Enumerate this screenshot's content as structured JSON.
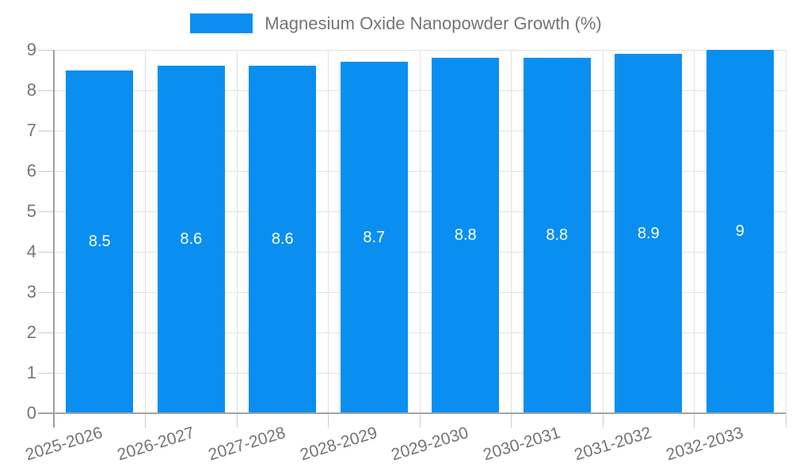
{
  "legend": {
    "label": "Magnesium Oxide Nanopowder Growth (%)"
  },
  "colors": {
    "bar": "#0a8ff0",
    "axis_text": "#757575",
    "bar_label_text": "#ffffff",
    "gridline": "#e2e2e2",
    "axis_line": "#9e9e9e",
    "background": "#ffffff"
  },
  "chart_data": {
    "type": "bar",
    "title": "",
    "legend_entries": [
      "Magnesium Oxide Nanopowder Growth (%)"
    ],
    "legend_position": "top-center",
    "categories": [
      "2025-2026",
      "2026-2027",
      "2027-2028",
      "2028-2029",
      "2029-2030",
      "2030-2031",
      "2031-2032",
      "2032-2033"
    ],
    "values": [
      8.5,
      8.6,
      8.6,
      8.7,
      8.8,
      8.8,
      8.9,
      9
    ],
    "bar_labels": [
      "8.5",
      "8.6",
      "8.6",
      "8.7",
      "8.8",
      "8.8",
      "8.9",
      "9"
    ],
    "xlabel": "",
    "ylabel": "",
    "ylim": [
      0,
      9
    ],
    "yticks": [
      0,
      1,
      2,
      3,
      4,
      5,
      6,
      7,
      8,
      9
    ],
    "grid": true,
    "x_label_rotation_deg": -17
  }
}
